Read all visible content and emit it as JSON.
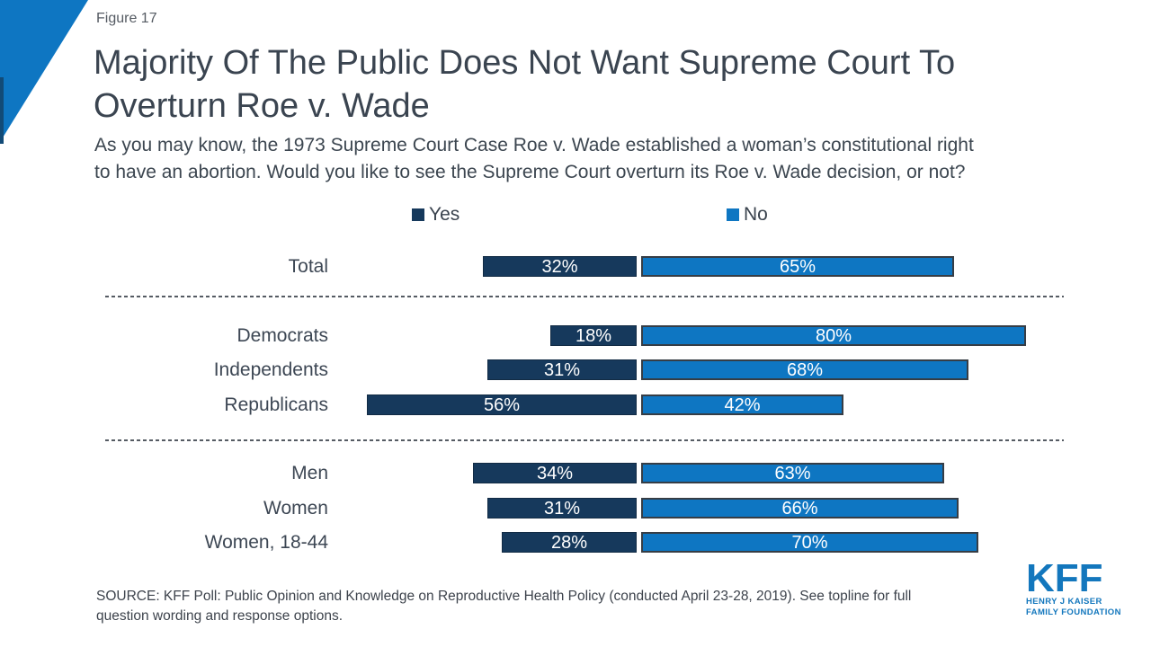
{
  "page": {
    "figure_label": "Figure 17",
    "title_lines": [
      "Majority Of The Public Does Not Want Supreme Court To",
      "Overturn Roe v. Wade"
    ],
    "subtitle_lines": [
      "As you may know, the 1973 Supreme Court Case Roe v. Wade established a woman’s constitutional right",
      "to have an abortion. Would you like to see the Supreme Court overturn its Roe v. Wade decision, or not?"
    ],
    "source_lines": [
      "SOURCE: KFF Poll: Public Opinion and Knowledge on Reproductive Health Policy (conducted April 23-28, 2019). See topline for full",
      "question wording and response options."
    ]
  },
  "logo": {
    "acronym": "KFF",
    "name_line1": "HENRY J KAISER",
    "name_line2": "FAMILY FOUNDATION",
    "color": "#1377BD"
  },
  "colors": {
    "accent_triangle": "#0E76C2",
    "accent_sliver": "#124B77",
    "yes_bar": "#16395C",
    "no_bar": "#0E76C2",
    "divider": "#555B63",
    "title_text": "#3A4450",
    "body_text": "#3C4650",
    "bar_value_text": "#FFFFFF"
  },
  "chart_data": {
    "type": "bar",
    "orientation": "horizontal_diverging",
    "value_suffix": "%",
    "legend_position": "top",
    "grid": false,
    "legend": [
      {
        "label": "Yes",
        "color": "#16395C"
      },
      {
        "label": "No",
        "color": "#0E76C2"
      }
    ],
    "categories": [
      "Total",
      "Democrats",
      "Independents",
      "Republicans",
      "Men",
      "Women",
      "Women, 18-44"
    ],
    "series": [
      {
        "name": "Yes",
        "values": [
          32,
          18,
          31,
          56,
          34,
          31,
          28
        ]
      },
      {
        "name": "No",
        "values": [
          65,
          80,
          68,
          42,
          63,
          66,
          70
        ]
      }
    ],
    "groups": {
      "total": [
        "Total"
      ],
      "party": [
        "Democrats",
        "Independents",
        "Republicans"
      ],
      "gender": [
        "Men",
        "Women",
        "Women, 18-44"
      ]
    },
    "axis_max_yes": 56,
    "axis_max_no": 80
  }
}
